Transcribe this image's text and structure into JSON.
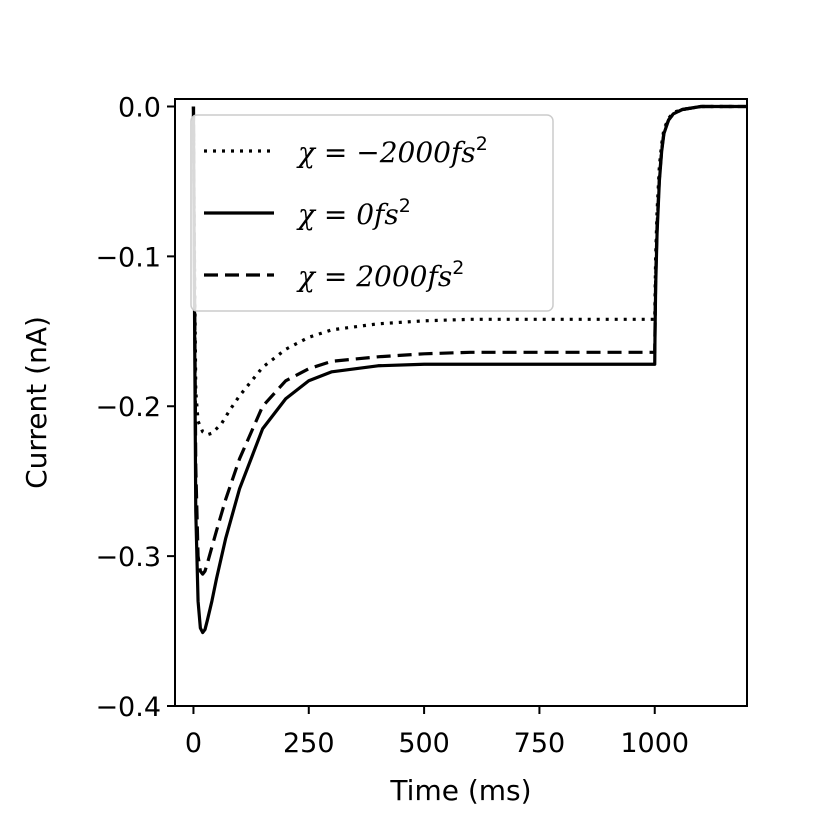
{
  "chart_data": {
    "type": "line",
    "title": "",
    "xlabel": "Time (ms)",
    "ylabel": "Current (nA)",
    "xlim": [
      -40,
      1200
    ],
    "ylim": [
      -0.4,
      0.005
    ],
    "xticks": [
      0,
      250,
      500,
      750,
      1000
    ],
    "xtick_labels": [
      "0",
      "250",
      "500",
      "750",
      "1000"
    ],
    "yticks": [
      0.0,
      -0.1,
      -0.2,
      -0.3,
      -0.4
    ],
    "ytick_labels": [
      "0.0",
      "−0.1",
      "−0.2",
      "−0.3",
      "−0.4"
    ],
    "grid": false,
    "legend_position": "upper-left",
    "series": [
      {
        "name": "χ = −2000fs²",
        "legend_prefix": "χ = −2000fs",
        "legend_sup": "2",
        "style": "dotted",
        "color": "#000000",
        "x": [
          0,
          2,
          5,
          10,
          20,
          30,
          40,
          60,
          80,
          100,
          150,
          200,
          250,
          300,
          400,
          500,
          600,
          700,
          800,
          900,
          1000,
          1000.5,
          1002,
          1005,
          1010,
          1015,
          1020,
          1030,
          1040,
          1060,
          1080,
          1100,
          1150,
          1200
        ],
        "y": [
          0.0,
          -0.09,
          -0.19,
          -0.21,
          -0.217,
          -0.219,
          -0.218,
          -0.212,
          -0.202,
          -0.193,
          -0.174,
          -0.162,
          -0.154,
          -0.149,
          -0.145,
          -0.143,
          -0.142,
          -0.142,
          -0.142,
          -0.142,
          -0.142,
          -0.13,
          -0.1,
          -0.07,
          -0.04,
          -0.025,
          -0.015,
          -0.008,
          -0.004,
          -0.002,
          -0.001,
          0.0,
          0.0,
          0.0
        ]
      },
      {
        "name": "χ = 0fs²",
        "legend_prefix": "χ = 0fs",
        "legend_sup": "2",
        "style": "solid",
        "color": "#000000",
        "x": [
          0,
          2,
          5,
          10,
          15,
          20,
          25,
          30,
          40,
          50,
          70,
          100,
          150,
          200,
          250,
          300,
          400,
          500,
          600,
          700,
          800,
          900,
          1000,
          1000.5,
          1002,
          1005,
          1010,
          1015,
          1020,
          1030,
          1040,
          1060,
          1080,
          1100,
          1150,
          1200
        ],
        "y": [
          0.0,
          -0.12,
          -0.27,
          -0.33,
          -0.348,
          -0.351,
          -0.349,
          -0.343,
          -0.33,
          -0.315,
          -0.288,
          -0.255,
          -0.215,
          -0.195,
          -0.183,
          -0.177,
          -0.173,
          -0.172,
          -0.172,
          -0.172,
          -0.172,
          -0.172,
          -0.172,
          -0.155,
          -0.12,
          -0.085,
          -0.05,
          -0.03,
          -0.018,
          -0.009,
          -0.005,
          -0.002,
          -0.001,
          0.0,
          0.0,
          0.0
        ]
      },
      {
        "name": "χ = 2000fs²",
        "legend_prefix": "χ = 2000fs",
        "legend_sup": "2",
        "style": "dashed",
        "color": "#000000",
        "x": [
          0,
          2,
          5,
          10,
          15,
          20,
          25,
          30,
          40,
          50,
          70,
          100,
          150,
          200,
          250,
          300,
          400,
          500,
          600,
          700,
          800,
          900,
          1000,
          1000.5,
          1002,
          1005,
          1010,
          1015,
          1020,
          1030,
          1040,
          1060,
          1080,
          1100,
          1150,
          1200
        ],
        "y": [
          0.0,
          -0.1,
          -0.24,
          -0.3,
          -0.31,
          -0.312,
          -0.31,
          -0.305,
          -0.294,
          -0.283,
          -0.262,
          -0.235,
          -0.2,
          -0.183,
          -0.175,
          -0.17,
          -0.167,
          -0.165,
          -0.164,
          -0.164,
          -0.164,
          -0.164,
          -0.164,
          -0.15,
          -0.115,
          -0.08,
          -0.048,
          -0.029,
          -0.017,
          -0.009,
          -0.005,
          -0.002,
          -0.001,
          0.0,
          0.0,
          0.0
        ]
      }
    ]
  }
}
